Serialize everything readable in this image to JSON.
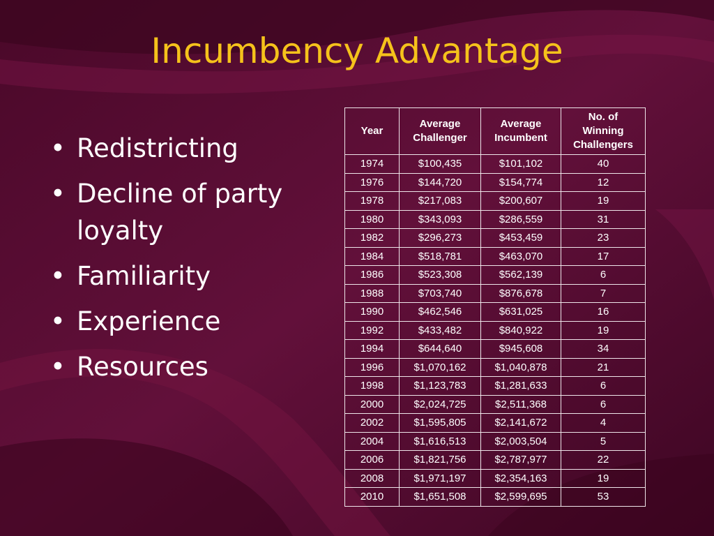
{
  "title": "Incumbency Advantage",
  "bullets": [
    "Redistricting",
    "Decline of party loyalty",
    "Familiarity",
    "Experience",
    "Resources"
  ],
  "table": {
    "headers": [
      "Year",
      "Average Challenger",
      "Average Incumbent",
      "No. of Winning Challengers"
    ],
    "rows": [
      [
        "1974",
        "$100,435",
        "$101,102",
        "40"
      ],
      [
        "1976",
        "$144,720",
        "$154,774",
        "12"
      ],
      [
        "1978",
        "$217,083",
        "$200,607",
        "19"
      ],
      [
        "1980",
        "$343,093",
        "$286,559",
        "31"
      ],
      [
        "1982",
        "$296,273",
        "$453,459",
        "23"
      ],
      [
        "1984",
        "$518,781",
        "$463,070",
        "17"
      ],
      [
        "1986",
        "$523,308",
        "$562,139",
        "6"
      ],
      [
        "1988",
        "$703,740",
        "$876,678",
        "7"
      ],
      [
        "1990",
        "$462,546",
        "$631,025",
        "16"
      ],
      [
        "1992",
        "$433,482",
        "$840,922",
        "19"
      ],
      [
        "1994",
        "$644,640",
        "$945,608",
        "34"
      ],
      [
        "1996",
        "$1,070,162",
        "$1,040,878",
        "21"
      ],
      [
        "1998",
        "$1,123,783",
        "$1,281,633",
        "6"
      ],
      [
        "2000",
        "$2,024,725",
        "$2,511,368",
        "6"
      ],
      [
        "2002",
        "$1,595,805",
        "$2,141,672",
        "4"
      ],
      [
        "2004",
        "$1,616,513",
        "$2,003,504",
        "5"
      ],
      [
        "2006",
        "$1,821,756",
        "$2,787,977",
        "22"
      ],
      [
        "2008",
        "$1,971,197",
        "$2,354,163",
        "19"
      ],
      [
        "2010",
        "$1,651,508",
        "$2,599,695",
        "53"
      ]
    ]
  },
  "colors": {
    "background": "#5a0b33",
    "title": "#f5c21b",
    "text": "#ffffff",
    "table_border": "#efe6ea"
  }
}
